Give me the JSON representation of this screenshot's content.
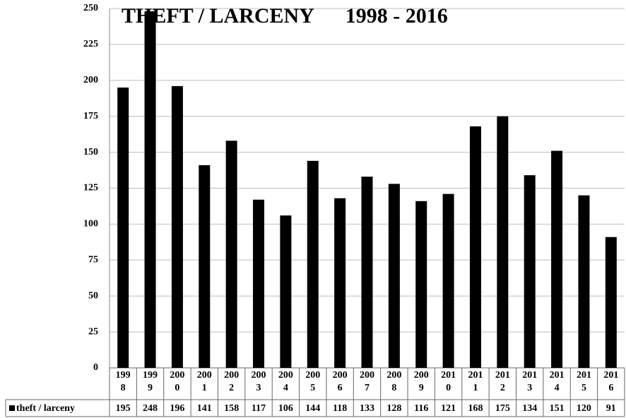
{
  "chart_data": {
    "type": "bar",
    "title": "THEFT / LARCENY      1998 - 2016",
    "categories": [
      "1998",
      "1999",
      "2000",
      "2001",
      "2002",
      "2003",
      "2004",
      "2005",
      "2006",
      "2007",
      "2008",
      "2009",
      "2010",
      "2011",
      "2012",
      "2013",
      "2014",
      "2015",
      "2016"
    ],
    "series": [
      {
        "name": "theft / larceny",
        "color": "#000000",
        "values": [
          195,
          248,
          196,
          141,
          158,
          117,
          106,
          144,
          118,
          133,
          128,
          116,
          121,
          168,
          175,
          134,
          151,
          120,
          91
        ]
      }
    ],
    "ylim": [
      0,
      250
    ],
    "yticks": [
      0,
      25,
      50,
      75,
      100,
      125,
      150,
      175,
      200,
      225,
      250
    ],
    "grid": true
  }
}
